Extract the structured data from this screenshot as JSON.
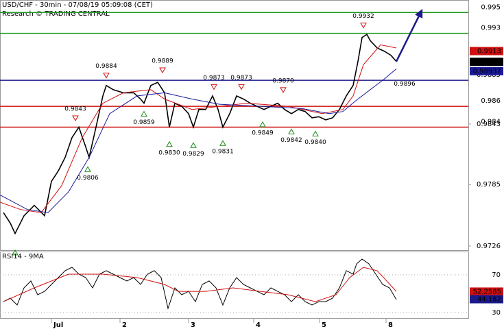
{
  "chart_data": [
    {
      "type": "price",
      "title": "USD/CHF - 30min - 07/08/19 05:09:08 (CET)",
      "subtitle": "Research © TRADING CENTRAL",
      "xlim": [
        0,
        136.6
      ],
      "ylim": [
        0.9722,
        0.9962
      ],
      "yticks": [
        0.9726,
        0.9785,
        0.9843
      ],
      "series": [
        {
          "color": "#000000",
          "x": [
            1,
            3,
            4.4,
            7,
            10,
            13,
            15,
            17,
            19,
            21,
            23,
            25,
            26,
            28,
            30,
            31,
            33,
            36,
            39,
            41,
            42,
            44,
            46,
            48,
            49.4,
            51,
            53,
            55,
            56.4,
            58,
            60,
            62,
            63.6,
            65,
            67,
            69,
            71,
            73,
            75,
            77,
            79,
            81,
            83,
            85,
            87,
            89,
            91,
            93,
            95,
            97,
            99,
            101,
            103,
            104.4,
            105.6,
            107,
            108,
            110,
            112,
            114,
            115.6
          ],
          "values": [
            0.9758,
            0.9748,
            0.9738,
            0.9755,
            0.9765,
            0.9755,
            0.9788,
            0.9798,
            0.9811,
            0.983,
            0.984,
            0.9821,
            0.9811,
            0.984,
            0.987,
            0.988,
            0.9876,
            0.9873,
            0.9873,
            0.9867,
            0.9863,
            0.988,
            0.9883,
            0.9873,
            0.984,
            0.9863,
            0.986,
            0.9853,
            0.984,
            0.9857,
            0.9857,
            0.987,
            0.9857,
            0.984,
            0.9853,
            0.987,
            0.9867,
            0.9863,
            0.986,
            0.9857,
            0.986,
            0.9863,
            0.9857,
            0.9853,
            0.9857,
            0.9855,
            0.9849,
            0.985,
            0.9847,
            0.9849,
            0.9857,
            0.987,
            0.988,
            0.9903,
            0.9926,
            0.9929,
            0.9923,
            0.9916,
            0.9913,
            0.9909,
            0.9903
          ]
        },
        {
          "color": "#d01010",
          "x": [
            0,
            6,
            12,
            18,
            24,
            30,
            36,
            44,
            48,
            56,
            64,
            72,
            84,
            94,
            100,
            103,
            106,
            111,
            115.6
          ],
          "values": [
            0.9768,
            0.9761,
            0.9758,
            0.9784,
            0.983,
            0.9863,
            0.9873,
            0.9876,
            0.9867,
            0.9857,
            0.986,
            0.9863,
            0.986,
            0.9853,
            0.9857,
            0.987,
            0.99,
            0.9919,
            0.9916
          ]
        },
        {
          "color": "#1a1a9a",
          "x": [
            0,
            8,
            14,
            20,
            26,
            32,
            40,
            48,
            56,
            64,
            76,
            88,
            96,
            100,
            104,
            108,
            112,
            115.6
          ],
          "values": [
            0.9775,
            0.9761,
            0.9758,
            0.9778,
            0.9811,
            0.9853,
            0.987,
            0.9873,
            0.9867,
            0.9862,
            0.986,
            0.9858,
            0.9853,
            0.9855,
            0.9866,
            0.9876,
            0.9886,
            0.9896
          ]
        }
      ],
      "levels": [
        {
          "value": 0.995,
          "color": "#1a9a1a"
        },
        {
          "value": 0.993,
          "color": "#1a9a1a"
        },
        {
          "value": 0.9885,
          "color": "#1a1a8a"
        },
        {
          "value": 0.986,
          "color": "#d01010"
        },
        {
          "value": 0.984,
          "color": "#d01010"
        }
      ],
      "tags": [
        {
          "value": 0.9913,
          "color": "#d01010"
        },
        {
          "value": 0.99027,
          "color": "#000000"
        },
        {
          "value": 0.98937,
          "color": "#1a1a9a"
        }
      ],
      "annotations": [
        {
          "x": 22,
          "y": 0.9843,
          "text": "0.9843",
          "kind": "high"
        },
        {
          "x": 31,
          "y": 0.9884,
          "text": "0.9884",
          "kind": "high"
        },
        {
          "x": 47.4,
          "y": 0.9889,
          "text": "0.9889",
          "kind": "high"
        },
        {
          "x": 62.4,
          "y": 0.9873,
          "text": "0.9873",
          "kind": "high"
        },
        {
          "x": 70.4,
          "y": 0.9873,
          "text": "0.9873",
          "kind": "high"
        },
        {
          "x": 82.6,
          "y": 0.987,
          "text": "0.9870",
          "kind": "high"
        },
        {
          "x": 106,
          "y": 0.9932,
          "text": "0.9932",
          "kind": "high"
        },
        {
          "x": 118,
          "y": 0.9896,
          "text": "0.9896",
          "kind": "label"
        },
        {
          "x": 4.4,
          "y": 0.9726,
          "kind": "low"
        },
        {
          "x": 25.6,
          "y": 0.9806,
          "text": "0.9806",
          "kind": "low"
        },
        {
          "x": 42,
          "y": 0.9859,
          "text": "0.9859",
          "kind": "low"
        },
        {
          "x": 49.4,
          "y": 0.983,
          "text": "0.9830",
          "kind": "low"
        },
        {
          "x": 56.4,
          "y": 0.9829,
          "text": "0.9829",
          "kind": "low"
        },
        {
          "x": 65,
          "y": 0.9831,
          "text": "0.9831",
          "kind": "low"
        },
        {
          "x": 76.6,
          "y": 0.9849,
          "text": "0.9849",
          "kind": "low"
        },
        {
          "x": 85,
          "y": 0.9842,
          "text": "0.9842",
          "kind": "low"
        },
        {
          "x": 92,
          "y": 0.984,
          "text": "0.9840",
          "kind": "low"
        }
      ],
      "forecast": {
        "color": "#1a1a8a",
        "x": [
          115.6,
          123
        ],
        "values": [
          0.9903,
          0.9952
        ]
      }
    },
    {
      "type": "indicator",
      "title": "RSI14 - 9MA",
      "xlim": [
        0,
        136.6
      ],
      "ylim": [
        23.5,
        94.7
      ],
      "yticks": [
        30,
        70
      ],
      "grid": true,
      "xticks": [
        {
          "value": 15,
          "label": "Jul"
        },
        {
          "value": 35,
          "label": "2"
        },
        {
          "value": 55,
          "label": "3"
        },
        {
          "value": 74,
          "label": "4"
        },
        {
          "value": 93.2,
          "label": "5"
        },
        {
          "value": 112.6,
          "label": "8"
        }
      ],
      "series": [
        {
          "color": "#000000",
          "x": [
            1,
            3,
            5,
            7,
            9,
            11,
            13,
            15,
            17,
            19,
            21,
            23,
            25,
            27,
            29,
            31,
            33,
            35,
            37,
            39,
            41,
            43,
            45,
            47,
            49,
            51,
            53,
            55,
            57,
            59,
            61,
            63,
            65,
            67,
            69,
            71,
            73,
            75,
            77,
            79,
            81,
            83,
            85,
            87,
            89,
            91,
            93,
            95,
            97,
            99,
            101,
            103,
            104,
            105.6,
            107.6,
            109.6,
            111.6,
            113.6,
            115.6
          ],
          "values": [
            41.6,
            45.3,
            38.0,
            56.2,
            63.5,
            48.9,
            52.5,
            59.8,
            67.1,
            74.4,
            78.0,
            70.7,
            67.1,
            56.2,
            70.7,
            74.4,
            70.7,
            67.1,
            63.5,
            67.1,
            59.8,
            70.7,
            74.4,
            67.1,
            34.4,
            56.2,
            48.9,
            52.5,
            41.6,
            59.8,
            63.5,
            56.2,
            38.0,
            56.2,
            67.1,
            59.8,
            56.2,
            52.5,
            48.9,
            56.2,
            52.5,
            48.9,
            41.6,
            48.9,
            41.6,
            38.0,
            41.6,
            41.6,
            45.3,
            56.2,
            74.4,
            70.7,
            81.6,
            86.7,
            81.6,
            70.7,
            59.8,
            56.2,
            43.8
          ]
        },
        {
          "color": "#d01010",
          "x": [
            1,
            10,
            20,
            30,
            40,
            48,
            52,
            60,
            68,
            76,
            84,
            92,
            98,
            102,
            106,
            110,
            115.6
          ],
          "values": [
            41.6,
            56.2,
            70.7,
            70.7,
            67.1,
            59.8,
            52.5,
            52.5,
            56.2,
            52.5,
            48.9,
            41.6,
            48.9,
            67.1,
            78.0,
            74.4,
            52.5
          ]
        }
      ],
      "tags": [
        {
          "value": 52.2585,
          "color": "#d01010"
        },
        {
          "value": 44.182,
          "color": "#1a1a8a"
        }
      ]
    }
  ]
}
